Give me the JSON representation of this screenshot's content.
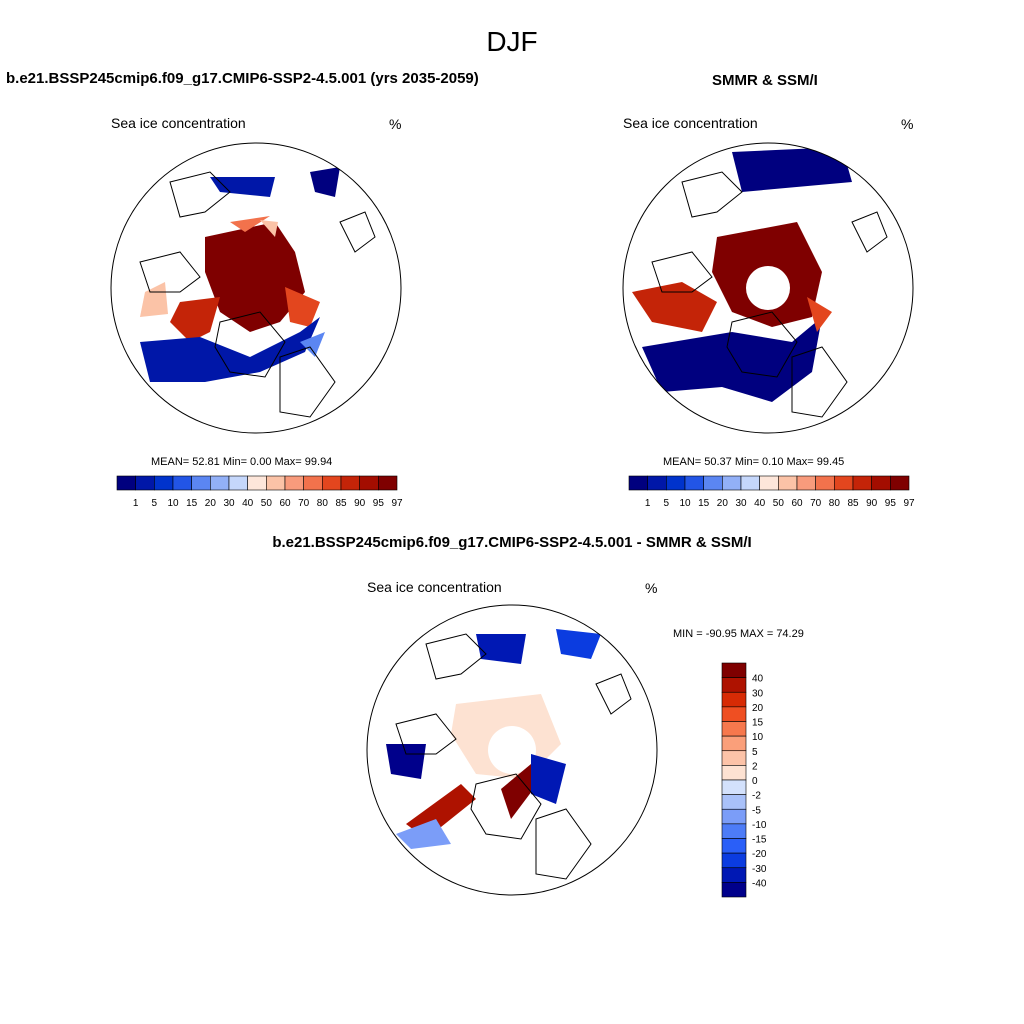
{
  "page": {
    "title": "DJF",
    "model_title": "b.e21.BSSP245cmip6.f09_g17.CMIP6-SSP2-4.5.001 (yrs 2035-2059)",
    "obs_title": "SMMR & SSM/I",
    "diff_title": "b.e21.BSSP245cmip6.f09_g17.CMIP6-SSP2-4.5.001 - SMMR & SSM/I"
  },
  "panels": [
    {
      "id": "model",
      "variable": "Sea ice concentration",
      "units": "%",
      "stats_text": "MEAN=  52.81  Min=   0.00  Max=  99.94"
    },
    {
      "id": "obs",
      "variable": "Sea ice concentration",
      "units": "%",
      "stats_text": "MEAN=  50.37  Min=   0.10  Max=  99.45"
    },
    {
      "id": "diff",
      "variable": "Sea ice concentration",
      "units": "%",
      "stats_text": "MIN = -90.95 MAX =  74.29"
    }
  ],
  "colors": {
    "conc_scale": [
      "#00007f",
      "#0017a8",
      "#0033cc",
      "#2255e6",
      "#5b86f2",
      "#92b0f7",
      "#c5d7fb",
      "#fde6da",
      "#fbc3a7",
      "#f89b7c",
      "#f2724c",
      "#e3461e",
      "#c42408",
      "#a30d00",
      "#7f0000"
    ],
    "diff_scale": [
      "#00008b",
      "#0018b4",
      "#0b3ce0",
      "#2a5ff8",
      "#4d7cf7",
      "#7b9df8",
      "#a9c1f9",
      "#d3e1fc",
      "#fde2d2",
      "#fcc3a8",
      "#fa9f7a",
      "#f6784d",
      "#ef4f22",
      "#d72b05",
      "#ae1200",
      "#7f0000"
    ],
    "land_line": "#000000",
    "background": "#ffffff"
  },
  "chart_data": [
    {
      "type": "heatmap",
      "id": "model",
      "projection": "north-polar-stereographic",
      "title": "b.e21.BSSP245cmip6.f09_g17.CMIP6-SSP2-4.5.001 (yrs 2035-2059)",
      "variable": "Sea ice concentration",
      "units": "%",
      "mean": 52.81,
      "min": 0.0,
      "max": 99.94,
      "levels": [
        "1",
        "5",
        "10",
        "15",
        "20",
        "30",
        "40",
        "50",
        "60",
        "70",
        "80",
        "85",
        "90",
        "95",
        "97"
      ],
      "colorbar_orientation": "horizontal"
    },
    {
      "type": "heatmap",
      "id": "obs",
      "projection": "north-polar-stereographic",
      "title": "SMMR & SSM/I",
      "variable": "Sea ice concentration",
      "units": "%",
      "mean": 50.37,
      "min": 0.1,
      "max": 99.45,
      "levels": [
        "1",
        "5",
        "10",
        "15",
        "20",
        "30",
        "40",
        "50",
        "60",
        "70",
        "80",
        "85",
        "90",
        "95",
        "97"
      ],
      "colorbar_orientation": "horizontal"
    },
    {
      "type": "heatmap",
      "id": "diff",
      "projection": "north-polar-stereographic",
      "title": "b.e21.BSSP245cmip6.f09_g17.CMIP6-SSP2-4.5.001 - SMMR & SSM/I",
      "variable": "Sea ice concentration",
      "units": "%",
      "min": -90.95,
      "max": 74.29,
      "levels": [
        "40",
        "30",
        "20",
        "15",
        "10",
        "5",
        "2",
        "0",
        "-2",
        "-5",
        "-10",
        "-15",
        "-20",
        "-30",
        "-40"
      ],
      "colorbar_orientation": "vertical"
    }
  ]
}
